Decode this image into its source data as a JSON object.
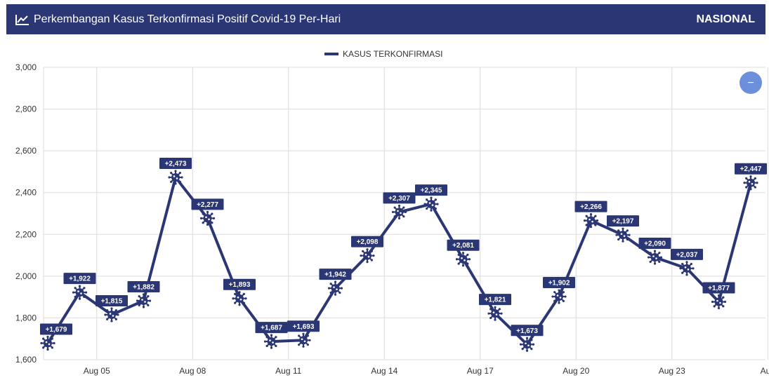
{
  "header": {
    "title": "Perkembangan Kasus Terkonfirmasi Positif Covid-19 Per-Hari",
    "region": "NASIONAL",
    "icon": "line-chart-icon"
  },
  "zoom_button": {
    "label": "−",
    "icon": "minus-icon",
    "color": "#6c8fdc"
  },
  "colors": {
    "header_bg": "#2b3674",
    "series": "#2b3674",
    "grid": "#dcdcdc"
  },
  "chart_data": {
    "type": "line",
    "legend": "KASUS TERKONFIRMASI",
    "legend_position": "top-center",
    "grid": true,
    "ylim": [
      1600,
      3000
    ],
    "y_ticks": [
      "1,600",
      "1,800",
      "2,000",
      "2,200",
      "2,400",
      "2,600",
      "2,800",
      "3,000"
    ],
    "x_tick_labels": [
      {
        "index": 2,
        "label": "Aug 05"
      },
      {
        "index": 5,
        "label": "Aug 08"
      },
      {
        "index": 8,
        "label": "Aug 11"
      },
      {
        "index": 11,
        "label": "Aug 14"
      },
      {
        "index": 14,
        "label": "Aug 17"
      },
      {
        "index": 17,
        "label": "Aug 20"
      },
      {
        "index": 20,
        "label": "Aug 23"
      },
      {
        "index": 23,
        "label": "Aug"
      }
    ],
    "x_start_index": 0.35,
    "x_end_index": 23.55,
    "series": [
      {
        "name": "KASUS TERKONFIRMASI",
        "values": [
          1679,
          1922,
          1815,
          1882,
          2473,
          2277,
          1893,
          1687,
          1693,
          1942,
          2098,
          2307,
          2345,
          2081,
          1821,
          1673,
          1902,
          2266,
          2197,
          2090,
          2037,
          1877,
          2447
        ],
        "labels": [
          "+1,679",
          "+1,922",
          "+1,815",
          "+1,882",
          "+2,473",
          "+2,277",
          "+1,893",
          "+1,687",
          "+1,693",
          "+1,942",
          "+2,098",
          "+2,307",
          "+2,345",
          "+2,081",
          "+1,821",
          "+1,673",
          "+1,902",
          "+2,266",
          "+2,197",
          "+2,090",
          "+2,037",
          "+1,877",
          "+2,447"
        ]
      }
    ]
  }
}
